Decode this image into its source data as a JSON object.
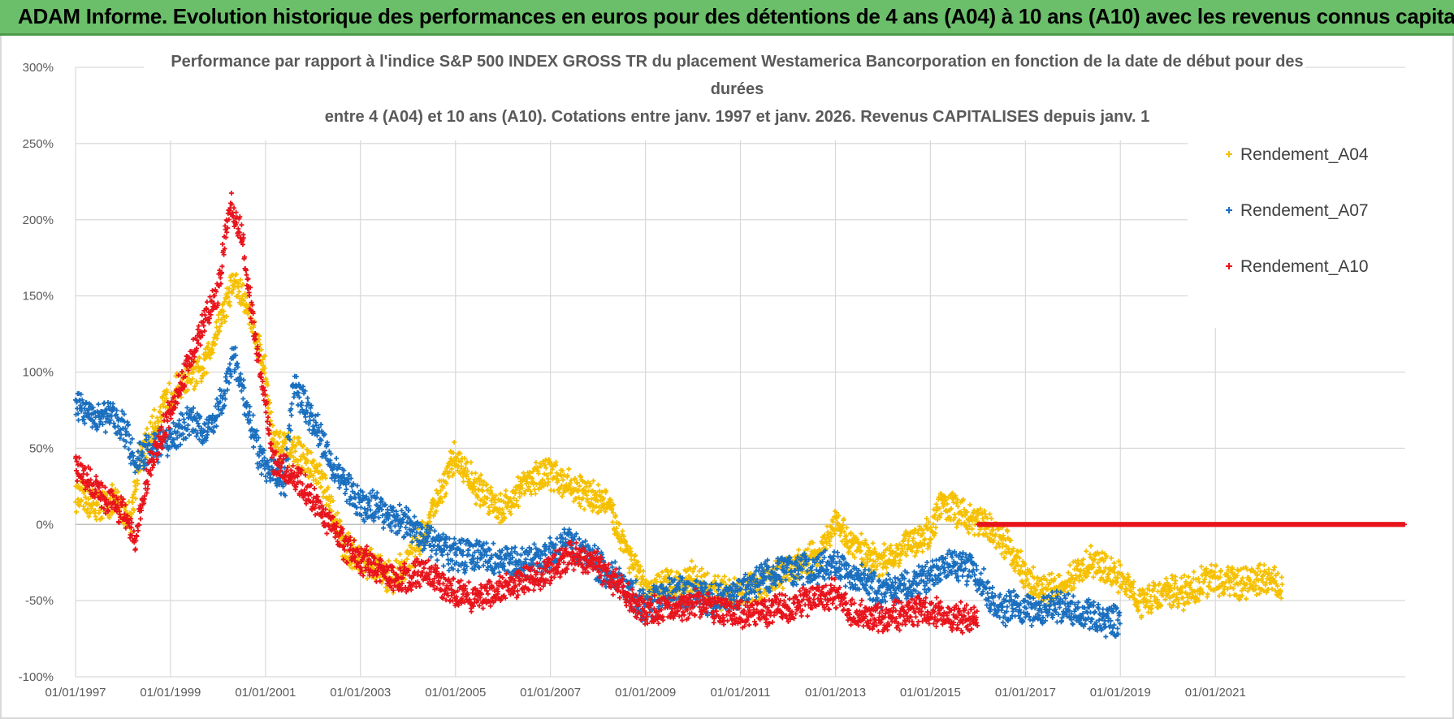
{
  "banner": {
    "title": "ADAM Informe. Evolution historique des performances en euros pour des détentions de 4 ans (A04) à 10 ans (A10) avec les revenus connus capitalisés"
  },
  "colors": {
    "banner_bg": "#6cbf6a",
    "A04": "#f5c000",
    "A07": "#1a6fbf",
    "A10": "#e8141c",
    "grid": "#d9d9d9"
  },
  "chart_data": {
    "type": "scatter",
    "title_lines": [
      "Performance par rapport à l'indice S&P 500 INDEX GROSS TR  du placement Westamerica Bancorporation en fonction de la date de début pour des",
      "durées",
      "entre 4 (A04) et 10 ans (A10). Cotations entre janv. 1997 et janv. 2026. Revenus CAPITALISES depuis janv. 1"
    ],
    "xlabel": "",
    "ylabel": "",
    "x_tick_labels": [
      "01/01/1997",
      "01/01/1999",
      "01/01/2001",
      "01/01/2003",
      "01/01/2005",
      "01/01/2007",
      "01/01/2009",
      "01/01/2011",
      "01/01/2013",
      "01/01/2015",
      "01/01/2017",
      "01/01/2019",
      "01/01/2021"
    ],
    "xlim": [
      "1997-01-01",
      "2024-12-31"
    ],
    "ylim": [
      -100,
      300
    ],
    "y_tick_labels": [
      "300%",
      "250%",
      "200%",
      "150%",
      "100%",
      "50%",
      "0%",
      "-50%",
      "-100%"
    ],
    "y_ticks": [
      300,
      250,
      200,
      150,
      100,
      50,
      0,
      -50,
      -100
    ],
    "grid": true,
    "legend_position": "top-right",
    "series": [
      {
        "name": "Rendement_A04",
        "points": [
          [
            "1997-01-01",
            20
          ],
          [
            "1997-06-01",
            12
          ],
          [
            "1997-11-01",
            15
          ],
          [
            "1998-03-01",
            5
          ],
          [
            "1998-05-01",
            40
          ],
          [
            "1998-09-01",
            65
          ],
          [
            "1999-01-01",
            85
          ],
          [
            "1999-05-01",
            95
          ],
          [
            "1999-09-01",
            100
          ],
          [
            "2000-01-01",
            130
          ],
          [
            "2000-05-01",
            160
          ],
          [
            "2000-09-01",
            140
          ],
          [
            "2001-01-01",
            100
          ],
          [
            "2001-03-01",
            55
          ],
          [
            "2001-06-01",
            50
          ],
          [
            "2001-10-01",
            45
          ],
          [
            "2002-03-01",
            30
          ],
          [
            "2002-09-01",
            -15
          ],
          [
            "2003-03-01",
            -25
          ],
          [
            "2003-09-01",
            -35
          ],
          [
            "2004-01-01",
            -25
          ],
          [
            "2004-06-01",
            0
          ],
          [
            "2004-10-01",
            25
          ],
          [
            "2005-01-01",
            45
          ],
          [
            "2005-06-01",
            25
          ],
          [
            "2006-01-01",
            10
          ],
          [
            "2006-06-01",
            25
          ],
          [
            "2006-12-01",
            35
          ],
          [
            "2007-06-01",
            25
          ],
          [
            "2007-10-01",
            20
          ],
          [
            "2008-03-01",
            15
          ],
          [
            "2008-09-01",
            -20
          ],
          [
            "2009-01-01",
            -45
          ],
          [
            "2009-06-01",
            -40
          ],
          [
            "2010-01-01",
            -35
          ],
          [
            "2010-06-01",
            -45
          ],
          [
            "2011-01-01",
            -45
          ],
          [
            "2011-06-01",
            -40
          ],
          [
            "2012-01-01",
            -30
          ],
          [
            "2012-09-01",
            -20
          ],
          [
            "2013-01-01",
            0
          ],
          [
            "2013-06-01",
            -15
          ],
          [
            "2014-01-01",
            -25
          ],
          [
            "2014-06-01",
            -15
          ],
          [
            "2015-01-01",
            -5
          ],
          [
            "2015-04-01",
            15
          ],
          [
            "2015-10-01",
            5
          ],
          [
            "2016-03-01",
            0
          ],
          [
            "2016-09-01",
            -15
          ],
          [
            "2017-01-01",
            -35
          ],
          [
            "2017-06-01",
            -45
          ],
          [
            "2018-01-01",
            -35
          ],
          [
            "2018-06-01",
            -25
          ],
          [
            "2019-01-01",
            -35
          ],
          [
            "2019-06-01",
            -50
          ],
          [
            "2020-01-01",
            -45
          ],
          [
            "2020-06-01",
            -45
          ],
          [
            "2020-12-01",
            -35
          ],
          [
            "2021-06-01",
            -40
          ],
          [
            "2022-01-01",
            -35
          ],
          [
            "2022-06-01",
            -40
          ]
        ]
      },
      {
        "name": "Rendement_A07",
        "points": [
          [
            "1997-01-01",
            78
          ],
          [
            "1997-06-01",
            72
          ],
          [
            "1997-11-01",
            70
          ],
          [
            "1998-02-01",
            60
          ],
          [
            "1998-04-01",
            42
          ],
          [
            "1998-08-01",
            50
          ],
          [
            "1999-01-01",
            55
          ],
          [
            "1999-06-01",
            70
          ],
          [
            "1999-10-01",
            60
          ],
          [
            "2000-02-01",
            80
          ],
          [
            "2000-05-01",
            110
          ],
          [
            "2000-08-01",
            80
          ],
          [
            "2000-12-01",
            40
          ],
          [
            "2001-06-01",
            30
          ],
          [
            "2001-08-01",
            90
          ],
          [
            "2002-01-01",
            70
          ],
          [
            "2002-06-01",
            40
          ],
          [
            "2002-12-01",
            15
          ],
          [
            "2003-06-01",
            10
          ],
          [
            "2004-01-01",
            0
          ],
          [
            "2004-06-01",
            -10
          ],
          [
            "2004-12-01",
            -20
          ],
          [
            "2005-06-01",
            -20
          ],
          [
            "2006-01-01",
            -25
          ],
          [
            "2006-06-01",
            -25
          ],
          [
            "2007-01-01",
            -20
          ],
          [
            "2007-06-01",
            -10
          ],
          [
            "2007-12-01",
            -25
          ],
          [
            "2008-06-01",
            -35
          ],
          [
            "2009-01-01",
            -55
          ],
          [
            "2009-06-01",
            -45
          ],
          [
            "2010-01-01",
            -45
          ],
          [
            "2010-06-01",
            -50
          ],
          [
            "2011-01-01",
            -45
          ],
          [
            "2011-06-01",
            -35
          ],
          [
            "2012-01-01",
            -30
          ],
          [
            "2012-06-01",
            -30
          ],
          [
            "2013-01-01",
            -25
          ],
          [
            "2013-06-01",
            -35
          ],
          [
            "2014-01-01",
            -45
          ],
          [
            "2014-06-01",
            -40
          ],
          [
            "2015-01-01",
            -35
          ],
          [
            "2015-06-01",
            -25
          ],
          [
            "2015-12-01",
            -30
          ],
          [
            "2016-06-01",
            -55
          ],
          [
            "2017-01-01",
            -55
          ],
          [
            "2017-06-01",
            -55
          ],
          [
            "2018-01-01",
            -55
          ],
          [
            "2018-06-01",
            -60
          ],
          [
            "2019-01-01",
            -65
          ]
        ]
      },
      {
        "name": "Rendement_A10",
        "points": [
          [
            "1997-01-01",
            40
          ],
          [
            "1997-05-01",
            25
          ],
          [
            "1997-10-01",
            15
          ],
          [
            "1998-02-01",
            5
          ],
          [
            "1998-04-01",
            -10
          ],
          [
            "1998-08-01",
            40
          ],
          [
            "1999-01-01",
            75
          ],
          [
            "1999-05-01",
            100
          ],
          [
            "1999-09-01",
            130
          ],
          [
            "2000-01-01",
            150
          ],
          [
            "2000-04-01",
            210
          ],
          [
            "2000-07-01",
            190
          ],
          [
            "2000-10-01",
            130
          ],
          [
            "2001-01-01",
            80
          ],
          [
            "2001-03-01",
            40
          ],
          [
            "2001-09-01",
            30
          ],
          [
            "2002-03-01",
            10
          ],
          [
            "2002-09-01",
            -15
          ],
          [
            "2003-03-01",
            -25
          ],
          [
            "2003-09-01",
            -35
          ],
          [
            "2004-01-01",
            -35
          ],
          [
            "2004-06-01",
            -30
          ],
          [
            "2004-12-01",
            -45
          ],
          [
            "2005-06-01",
            -48
          ],
          [
            "2006-01-01",
            -42
          ],
          [
            "2006-06-01",
            -37
          ],
          [
            "2007-01-01",
            -30
          ],
          [
            "2007-06-01",
            -20
          ],
          [
            "2007-12-01",
            -25
          ],
          [
            "2008-06-01",
            -40
          ],
          [
            "2009-01-01",
            -58
          ],
          [
            "2009-06-01",
            -55
          ],
          [
            "2010-01-01",
            -52
          ],
          [
            "2010-06-01",
            -55
          ],
          [
            "2011-01-01",
            -60
          ],
          [
            "2011-06-01",
            -57
          ],
          [
            "2012-01-01",
            -55
          ],
          [
            "2012-06-01",
            -50
          ],
          [
            "2013-01-01",
            -45
          ],
          [
            "2013-06-01",
            -60
          ],
          [
            "2014-01-01",
            -62
          ],
          [
            "2014-06-01",
            -58
          ],
          [
            "2015-01-01",
            -57
          ],
          [
            "2015-06-01",
            -60
          ],
          [
            "2016-01-01",
            -62
          ],
          [
            "2016-01-02",
            0
          ],
          [
            "2024-12-31",
            0
          ]
        ]
      }
    ]
  }
}
